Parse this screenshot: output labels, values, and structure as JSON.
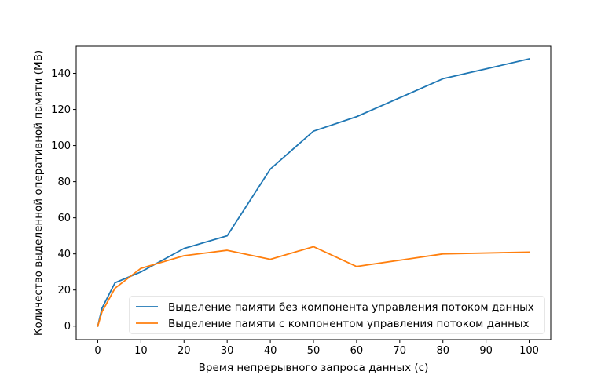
{
  "chart_data": {
    "type": "line",
    "title": "",
    "xlabel": "Время непрерывного запроса данных (с)",
    "ylabel": "Количество выделенной оперативной памяти (МВ)",
    "xlim": [
      -5,
      105
    ],
    "ylim": [
      -7.5,
      155
    ],
    "xticks": [
      0,
      10,
      20,
      30,
      40,
      50,
      60,
      70,
      80,
      90,
      100
    ],
    "yticks": [
      0,
      20,
      40,
      60,
      80,
      100,
      120,
      140
    ],
    "grid": false,
    "legend_position": "lower-right",
    "series": [
      {
        "name": "Выделение памяти без компонента управления потоком данных",
        "color": "#1f77b4",
        "x": [
          0,
          1,
          4,
          10,
          20,
          30,
          40,
          50,
          60,
          80,
          100
        ],
        "y": [
          0,
          10,
          24,
          30,
          43,
          50,
          87,
          108,
          116,
          137,
          148
        ]
      },
      {
        "name": "Выделение памяти с компонентом управления потоком данных",
        "color": "#ff7f0e",
        "x": [
          0,
          1,
          4,
          10,
          20,
          30,
          40,
          50,
          60,
          80,
          100
        ],
        "y": [
          0,
          8,
          21,
          32,
          39,
          42,
          37,
          44,
          33,
          40,
          41
        ]
      }
    ]
  }
}
